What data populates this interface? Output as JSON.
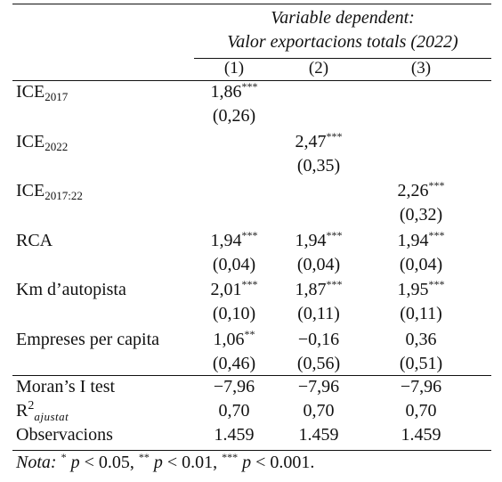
{
  "table": {
    "header": {
      "line1": "Variable dependent:",
      "line2": "Valor exportacions totals (2022)",
      "columns": [
        "(1)",
        "(2)",
        "(3)"
      ]
    },
    "rows": [
      {
        "label": "ICE",
        "sub": "2017",
        "values": [
          {
            "coef": "1,86",
            "stars": "***",
            "se": "(0,26)"
          },
          {
            "coef": "",
            "stars": "",
            "se": ""
          },
          {
            "coef": "",
            "stars": "",
            "se": ""
          }
        ]
      },
      {
        "label": "ICE",
        "sub": "2022",
        "values": [
          {
            "coef": "",
            "stars": "",
            "se": ""
          },
          {
            "coef": "2,47",
            "stars": "***",
            "se": "(0,35)"
          },
          {
            "coef": "",
            "stars": "",
            "se": ""
          }
        ]
      },
      {
        "label": "ICE",
        "sub": "2017:22",
        "values": [
          {
            "coef": "",
            "stars": "",
            "se": ""
          },
          {
            "coef": "",
            "stars": "",
            "se": ""
          },
          {
            "coef": "2,26",
            "stars": "***",
            "se": "(0,32)"
          }
        ]
      },
      {
        "label": "RCA",
        "sub": "",
        "values": [
          {
            "coef": "1,94",
            "stars": "***",
            "se": "(0,04)"
          },
          {
            "coef": "1,94",
            "stars": "***",
            "se": "(0,04)"
          },
          {
            "coef": "1,94",
            "stars": "***",
            "se": "(0,04)"
          }
        ]
      },
      {
        "label": "Km d’autopista",
        "sub": "",
        "values": [
          {
            "coef": "2,01",
            "stars": "***",
            "se": "(0,10)"
          },
          {
            "coef": "1,87",
            "stars": "***",
            "se": "(0,11)"
          },
          {
            "coef": "1,95",
            "stars": "***",
            "se": "(0,11)"
          }
        ]
      },
      {
        "label": "Empreses per capita",
        "sub": "",
        "values": [
          {
            "coef": "1,06",
            "stars": "**",
            "se": "(0,46)"
          },
          {
            "coef": "−0,16",
            "stars": "",
            "se": "(0,56)"
          },
          {
            "coef": "0,36",
            "stars": "",
            "se": "(0,51)"
          }
        ]
      }
    ],
    "stats": [
      {
        "label": "Moran’s I test",
        "values": [
          "−7,96",
          "−7,96",
          "−7,96"
        ]
      },
      {
        "label": "R",
        "sup": "2",
        "sub": "ajustat",
        "values": [
          "0,70",
          "0,70",
          "0,70"
        ]
      },
      {
        "label": "Observacions",
        "values": [
          "1.459",
          "1.459",
          "1.459"
        ]
      }
    ],
    "note": {
      "label": "Nota:",
      "text": "* p < 0.05, ** p < 0.01, *** p < 0.001."
    }
  }
}
